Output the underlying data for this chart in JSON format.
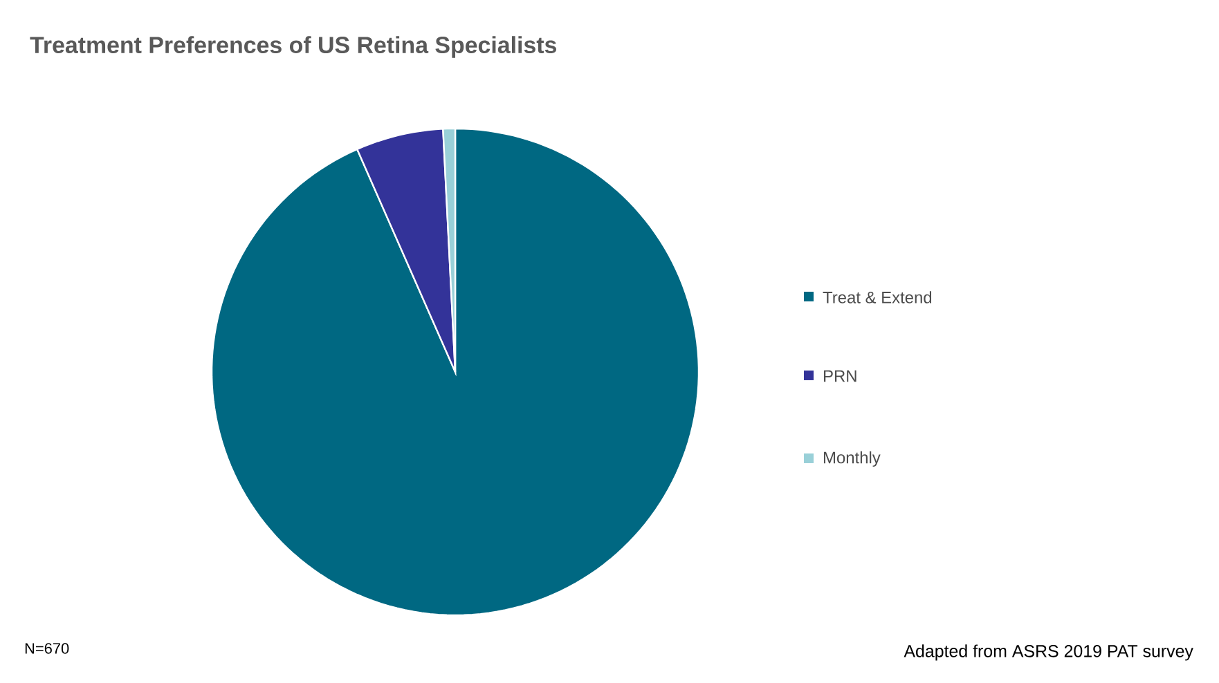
{
  "chart_data": {
    "type": "pie",
    "title": "Treatment Preferences of US Retina Specialists",
    "categories": [
      "Treat & Extend",
      "PRN",
      "Monthly"
    ],
    "values": [
      93.4,
      5.8,
      0.8
    ],
    "colors": [
      "#006882",
      "#333399",
      "#99d0d8"
    ],
    "legend": "right",
    "annotations": [
      "N=670",
      "Adapted from ASRS 2019 PAT survey"
    ]
  }
}
